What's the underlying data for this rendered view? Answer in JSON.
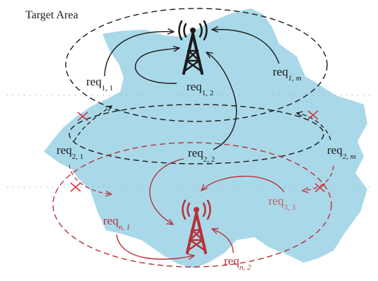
{
  "title": "Target Area",
  "colors": {
    "area": "#a9d9e8",
    "black": "#1a1a1a",
    "red": "#b5313a",
    "pink": "#c0636a",
    "grid": "#9a9a9a"
  },
  "towers": [
    {
      "name": "tower-top",
      "color": "black"
    },
    {
      "name": "tower-bottom",
      "color": "red"
    }
  ],
  "labels": {
    "req_1_1": {
      "base": "req",
      "sub": "1, 1"
    },
    "req_1_2": {
      "base": "req",
      "sub": "1, 2"
    },
    "req_1_m": {
      "base": "req",
      "sub": "1, m"
    },
    "req_2_1": {
      "base": "req",
      "sub": "2, 1"
    },
    "req_2_2": {
      "base": "req",
      "sub": "2, 2"
    },
    "req_2_m": {
      "base": "req",
      "sub": "2, m"
    },
    "req_n_1": {
      "base": "req",
      "sub": "n, 1"
    },
    "req_3_3": {
      "base": "req",
      "sub": "3, 3"
    },
    "req_n_2": {
      "base": "req",
      "sub": "n, 2"
    }
  }
}
